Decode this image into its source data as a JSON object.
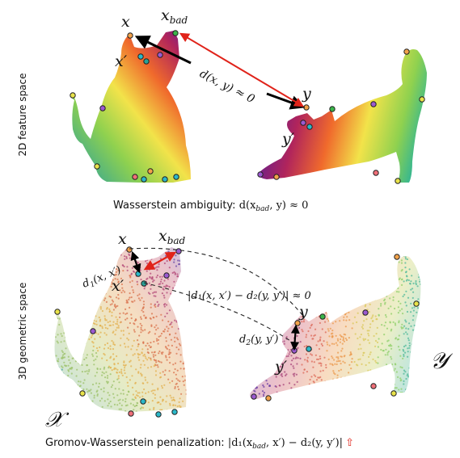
{
  "labels": {
    "space_2d": "2D feature space",
    "space_3d": "3D geometric space"
  },
  "top": {
    "x": "x",
    "x_bad": "x",
    "x_bad_sub": "bad",
    "x_prime": "x′",
    "y": "y",
    "y_prime": "y′",
    "distance": "d(x, y) ≈ 0",
    "caption_prefix": "Wasserstein ambiguity: ",
    "caption_math": "d(x",
    "caption_sub": "bad",
    "caption_suffix": ", y) ≈ 0"
  },
  "bottom": {
    "x": "x",
    "x_bad": "x",
    "x_bad_sub": "bad",
    "x_prime": "x′",
    "y": "y",
    "y_prime": "y′",
    "d1": "d",
    "d1_sub": "1",
    "d1_args": "(x, x′)",
    "d2": "d",
    "d2_sub": "2",
    "d2_args": "(y, y′)",
    "diff": "|d₁(x, x′) − d₂(y, y′)| ≈ 0",
    "set_x": "𝒳",
    "set_y": "𝒴",
    "caption_prefix": "Gromov-Wasserstein penalization: ",
    "caption_math": "|d₁(x",
    "caption_sub": "bad",
    "caption_suffix": ", x′) − d₂(y, y′)|",
    "caption_arrow": "⇧"
  },
  "colors": {
    "arrow_red": "#e0231a",
    "arrow_black": "#000000",
    "point_orange": "#f2a24a",
    "point_green": "#3bb54a",
    "point_cyan": "#2bb8c9",
    "point_purple": "#9b59d0",
    "point_pink": "#ef6f78",
    "point_yellow": "#e8e24a",
    "point_teal": "#2aa197"
  }
}
